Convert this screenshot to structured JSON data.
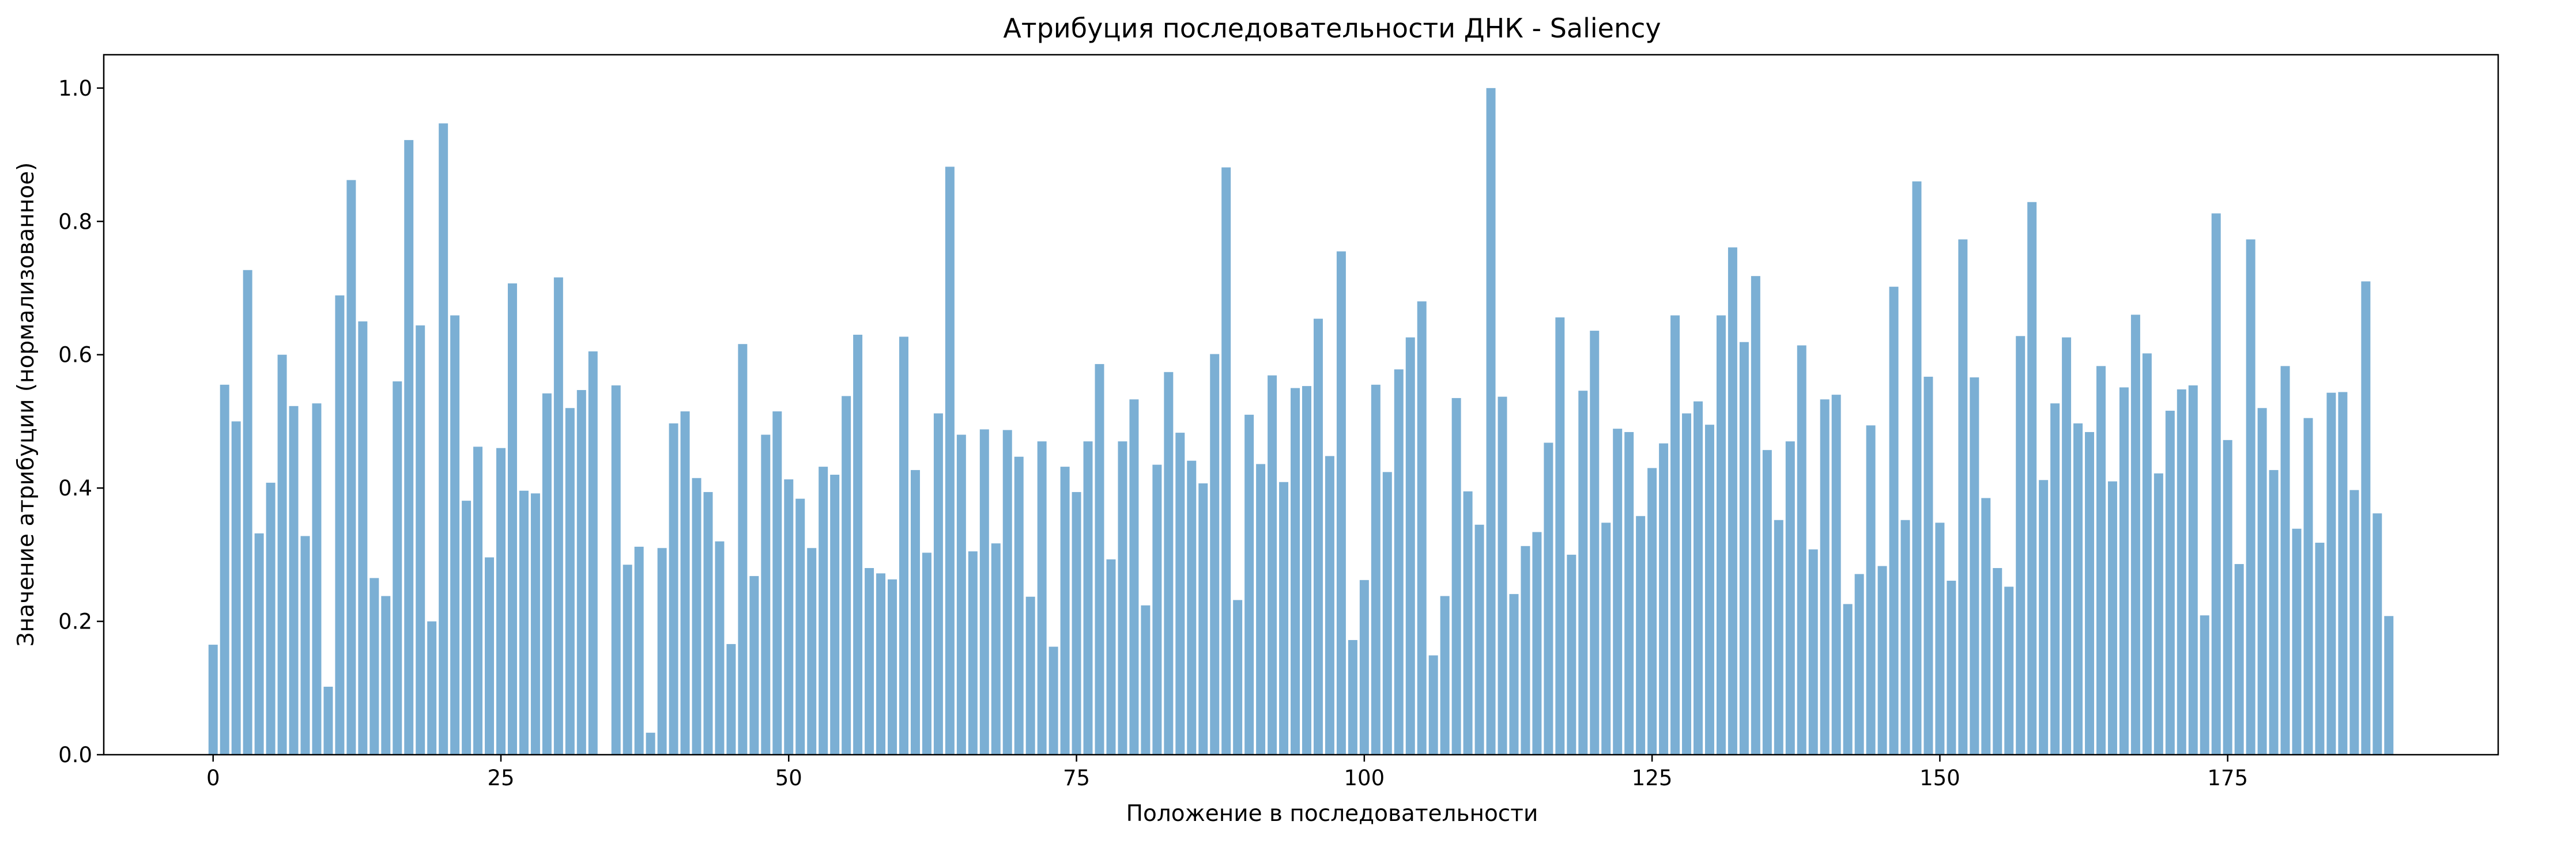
{
  "chart_data": {
    "type": "bar",
    "title": "Атрибуция последовательности ДНК - Saliency",
    "xlabel": "Положение в последовательности",
    "ylabel": "Значение атрибуции (нормализованное)",
    "xlim": [
      -9.5,
      198.5
    ],
    "ylim": [
      0.0,
      1.05
    ],
    "xticks": [
      0,
      25,
      50,
      75,
      100,
      125,
      150,
      175
    ],
    "yticks": [
      0.0,
      0.2,
      0.4,
      0.6,
      0.8,
      1.0
    ],
    "xtick_labels": [
      "0",
      "25",
      "50",
      "75",
      "100",
      "125",
      "150",
      "175"
    ],
    "ytick_labels": [
      "0.0",
      "0.2",
      "0.4",
      "0.6",
      "0.8",
      "1.0"
    ],
    "grid": false,
    "bar_color": "#7bafd4",
    "x": [
      0,
      1,
      2,
      3,
      4,
      5,
      6,
      7,
      8,
      9,
      10,
      11,
      12,
      13,
      14,
      15,
      16,
      17,
      18,
      19,
      20,
      21,
      22,
      23,
      24,
      25,
      26,
      27,
      28,
      29,
      30,
      31,
      32,
      33,
      34,
      35,
      36,
      37,
      38,
      39,
      40,
      41,
      42,
      43,
      44,
      45,
      46,
      47,
      48,
      49,
      50,
      51,
      52,
      53,
      54,
      55,
      56,
      57,
      58,
      59,
      60,
      61,
      62,
      63,
      64,
      65,
      66,
      67,
      68,
      69,
      70,
      71,
      72,
      73,
      74,
      75,
      76,
      77,
      78,
      79,
      80,
      81,
      82,
      83,
      84,
      85,
      86,
      87,
      88,
      89,
      90,
      91,
      92,
      93,
      94,
      95,
      96,
      97,
      98,
      99,
      100,
      101,
      102,
      103,
      104,
      105,
      106,
      107,
      108,
      109,
      110,
      111,
      112,
      113,
      114,
      115,
      116,
      117,
      118,
      119,
      120,
      121,
      122,
      123,
      124,
      125,
      126,
      127,
      128,
      129,
      130,
      131,
      132,
      133,
      134,
      135,
      136,
      137,
      138,
      139,
      140,
      141,
      142,
      143,
      144,
      145,
      146,
      147,
      148,
      149,
      150,
      151,
      152,
      153,
      154,
      155,
      156,
      157,
      158,
      159,
      160,
      161,
      162,
      163,
      164,
      165,
      166,
      167,
      168,
      169,
      170,
      171,
      172,
      173,
      174,
      175,
      176,
      177,
      178,
      179,
      180,
      181,
      182,
      183,
      184,
      185,
      186,
      187,
      188,
      189
    ],
    "values": [
      0.165,
      0.555,
      0.5,
      0.727,
      0.332,
      0.408,
      0.6,
      0.523,
      0.328,
      0.527,
      0.102,
      0.689,
      0.862,
      0.65,
      0.265,
      0.238,
      0.56,
      0.922,
      0.644,
      0.2,
      0.947,
      0.659,
      0.381,
      0.462,
      0.296,
      0.46,
      0.707,
      0.396,
      0.392,
      0.542,
      0.716,
      0.52,
      0.547,
      0.605,
      0.0,
      0.554,
      0.285,
      0.312,
      0.033,
      0.31,
      0.497,
      0.515,
      0.415,
      0.394,
      0.32,
      0.166,
      0.616,
      0.268,
      0.48,
      0.515,
      0.413,
      0.384,
      0.31,
      0.432,
      0.42,
      0.538,
      0.63,
      0.28,
      0.272,
      0.263,
      0.627,
      0.427,
      0.303,
      0.512,
      0.882,
      0.48,
      0.305,
      0.488,
      0.317,
      0.487,
      0.447,
      0.237,
      0.47,
      0.162,
      0.432,
      0.394,
      0.47,
      0.586,
      0.293,
      0.47,
      0.533,
      0.224,
      0.435,
      0.574,
      0.483,
      0.441,
      0.407,
      0.601,
      0.881,
      0.232,
      0.51,
      0.436,
      0.569,
      0.409,
      0.55,
      0.553,
      0.654,
      0.448,
      0.755,
      0.172,
      0.262,
      0.555,
      0.424,
      0.578,
      0.626,
      0.68,
      0.149,
      0.238,
      0.535,
      0.395,
      0.345,
      1.0,
      0.537,
      0.241,
      0.313,
      0.334,
      0.468,
      0.656,
      0.3,
      0.546,
      0.636,
      0.348,
      0.489,
      0.484,
      0.358,
      0.43,
      0.467,
      0.659,
      0.512,
      0.53,
      0.495,
      0.659,
      0.761,
      0.619,
      0.718,
      0.457,
      0.352,
      0.47,
      0.614,
      0.308,
      0.533,
      0.54,
      0.226,
      0.271,
      0.494,
      0.283,
      0.702,
      0.352,
      0.86,
      0.567,
      0.348,
      0.261,
      0.773,
      0.566,
      0.385,
      0.28,
      0.252,
      0.628,
      0.829,
      0.412,
      0.527,
      0.626,
      0.497,
      0.484,
      0.583,
      0.41,
      0.551,
      0.66,
      0.602,
      0.422,
      0.516,
      0.548,
      0.554,
      0.209,
      0.812,
      0.472,
      0.286,
      0.773,
      0.52,
      0.427,
      0.583,
      0.339,
      0.505,
      0.318,
      0.543,
      0.544,
      0.397,
      0.71,
      0.362,
      0.208
    ]
  }
}
